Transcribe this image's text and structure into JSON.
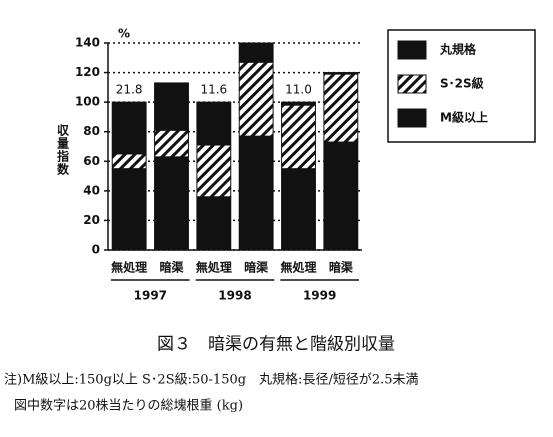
{
  "chart_data": {
    "type": "stacked-bar",
    "unit": "%",
    "y_label": "収量指数",
    "categories": [
      "無処理",
      "暗渠",
      "無処理",
      "暗渠",
      "無処理",
      "暗渠"
    ],
    "groups": [
      "1997",
      "1998",
      "1999"
    ],
    "series": [
      {
        "name": "M級以上",
        "color": "#111111",
        "values": [
          55,
          63,
          36,
          77,
          55,
          73
        ]
      },
      {
        "name": "S･2S級",
        "color": "#111111",
        "pattern": "hatch",
        "values": [
          10,
          18,
          35,
          50,
          43,
          46
        ]
      },
      {
        "name": "丸規格",
        "color": "#111111",
        "values": [
          35,
          32,
          29,
          13,
          2,
          1
        ]
      }
    ],
    "annotations": [
      "21.8",
      "11.6",
      "11.0"
    ],
    "ylim": [
      0,
      140
    ],
    "yticks": [
      0,
      20,
      40,
      60,
      80,
      100,
      120,
      140
    ],
    "grid": true,
    "caption": "図３　暗渠の有無と階級別収量",
    "notes": [
      "注)M級以上:150g以上 S･2S級:50-150g　丸規格:長径/短径が2.5未満",
      "図中数字は20株当たりの総塊根重 (kg)"
    ]
  }
}
